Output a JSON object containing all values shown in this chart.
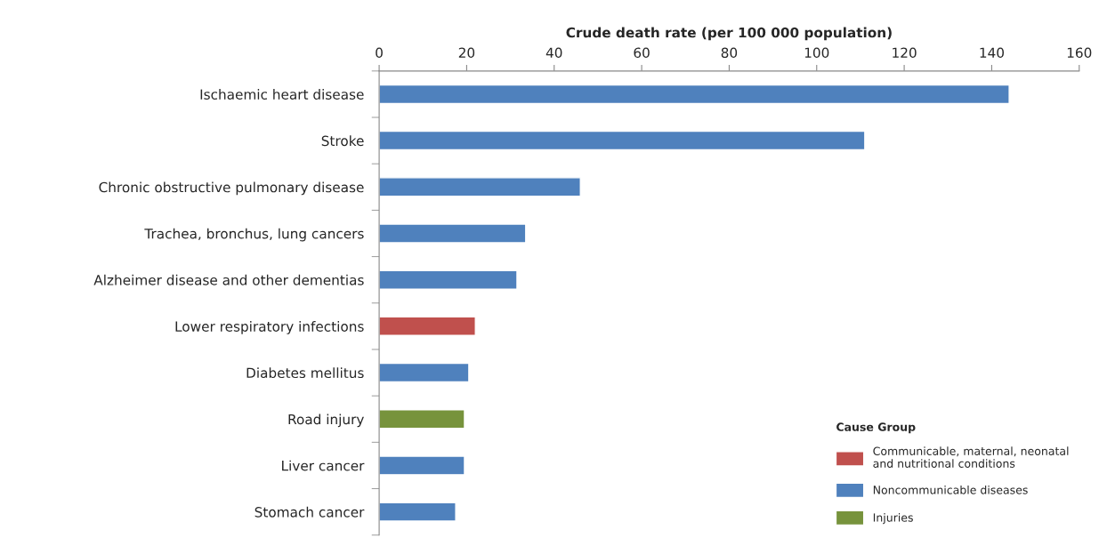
{
  "chart_data": {
    "type": "bar",
    "orientation": "horizontal",
    "xlabel": "Crude death rate (per 100 000 population)",
    "categories": [
      "Ischaemic heart disease",
      "Stroke",
      "Chronic obstructive pulmonary disease",
      "Trachea, bronchus, lung cancers",
      "Alzheimer disease and other dementias",
      "Lower respiratory infections",
      "Diabetes mellitus",
      "Road injury",
      "Liver cancer",
      "Stomach cancer"
    ],
    "series": [
      {
        "name": "Communicable, maternal, neonatal\nand nutritional conditions",
        "color": "#c0504d",
        "values": [
          null,
          null,
          null,
          null,
          null,
          22,
          null,
          null,
          null,
          null
        ]
      },
      {
        "name": "Noncommunicable diseases",
        "color": "#4f81bd",
        "values": [
          144,
          111,
          46,
          33.5,
          31.5,
          null,
          20.5,
          null,
          19.5,
          17.5
        ]
      },
      {
        "name": "Injuries",
        "color": "#77933c",
        "values": [
          null,
          null,
          null,
          null,
          null,
          null,
          null,
          19.5,
          null,
          null
        ]
      }
    ],
    "legend_title": "Cause Group",
    "legend": "bottom right",
    "xlim": [
      0,
      160
    ],
    "xticks": [
      0,
      20,
      40,
      60,
      80,
      100,
      120,
      140,
      160
    ],
    "grid": false
  }
}
